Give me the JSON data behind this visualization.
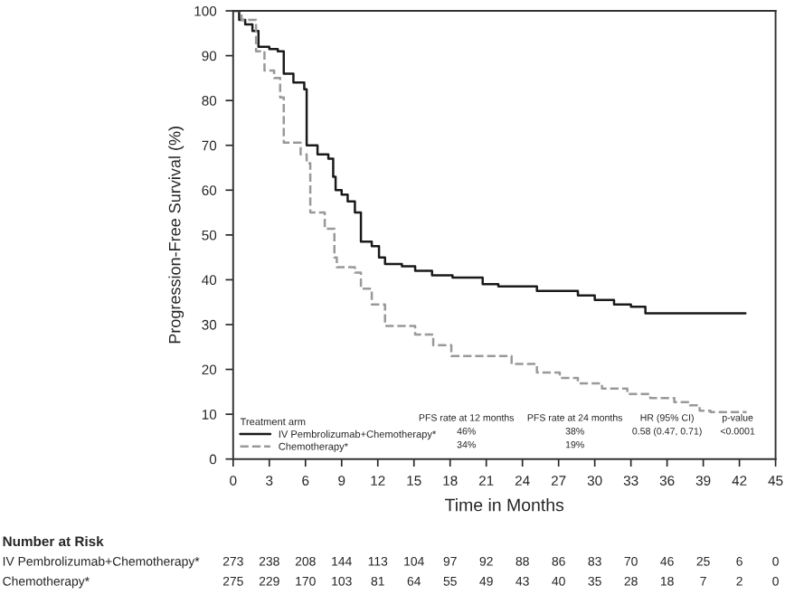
{
  "chart_data": {
    "type": "step",
    "xlabel": "Time in Months",
    "ylabel": "Progression-Free Survival (%)",
    "xlim": [
      0,
      45
    ],
    "xticks": [
      0,
      3,
      6,
      9,
      12,
      15,
      18,
      21,
      24,
      27,
      30,
      33,
      36,
      39,
      42,
      45
    ],
    "ylim": [
      0,
      100
    ],
    "yticks": [
      0,
      10,
      20,
      30,
      40,
      50,
      60,
      70,
      80,
      90,
      100
    ],
    "grid": false,
    "legend": "bottom left",
    "legend_title": "Treatment arm",
    "series": [
      {
        "name": "IV Pembrolizumab+Chemotherapy*",
        "color": "#1a1a1a",
        "line_style": "solid",
        "x": [
          0,
          0.5,
          1.0,
          1.6,
          2.1,
          3.0,
          3.7,
          4.2,
          5.0,
          5.9,
          6.1,
          7.0,
          7.9,
          8.3,
          8.5,
          9.0,
          9.5,
          10.1,
          10.6,
          11.5,
          12.1,
          12.6,
          14,
          15.1,
          16.5,
          18.2,
          20.7,
          22,
          25.2,
          28.6,
          30,
          31.6,
          33,
          34.2,
          42.5
        ],
        "values": [
          100,
          98,
          97,
          95.5,
          92,
          91.5,
          91,
          86,
          84,
          82.5,
          70,
          68,
          67,
          63,
          60,
          59,
          57.5,
          55,
          48.5,
          47.5,
          45,
          43.5,
          43,
          42,
          41,
          40.5,
          39,
          38.5,
          37.5,
          36.5,
          35.5,
          34.5,
          34,
          32.5,
          32.5
        ]
      },
      {
        "name": "Chemotherapy*",
        "color": "#999999",
        "line_style": "dashed",
        "x": [
          0,
          0.7,
          1.9,
          2.6,
          3.4,
          3.9,
          4.2,
          5.6,
          6.1,
          6.4,
          7.6,
          8.4,
          8.6,
          10.1,
          10.6,
          11.5,
          12.6,
          15.1,
          16.6,
          18.1,
          23.1,
          25.2,
          27.1,
          28.6,
          30.6,
          32.7,
          34.6,
          36.6,
          37.9,
          38.7,
          39.6,
          42.6
        ],
        "values": [
          100,
          98,
          91,
          86.7,
          85,
          80.7,
          70.6,
          68,
          66,
          55,
          51.4,
          45,
          42.8,
          41.6,
          38,
          34.5,
          29.7,
          27.8,
          25.4,
          23,
          21.2,
          19.3,
          18.1,
          16.9,
          15.7,
          14.5,
          13.6,
          12.7,
          12,
          10.8,
          10.5,
          10.5
        ]
      }
    ],
    "annotations": [
      "PFS rate at 12 months",
      "PFS rate at 24 months",
      "HR (95% CI)",
      "p-value",
      "46%",
      "38%",
      "0.58 (0.47, 0.71)",
      "<0.0001",
      "34%",
      "19%",
      "Number at Risk",
      "IV Pembrolizumab+Chemotherapy*",
      "Chemotherapy*",
      "273",
      "238",
      "208",
      "144",
      "113",
      "104",
      "97",
      "92",
      "88",
      "86",
      "83",
      "70",
      "46",
      "25",
      "6",
      "0",
      "275",
      "229",
      "170",
      "103",
      "81",
      "64",
      "55",
      "49",
      "43",
      "40",
      "35",
      "28",
      "18",
      "7",
      "2",
      "0"
    ]
  }
}
